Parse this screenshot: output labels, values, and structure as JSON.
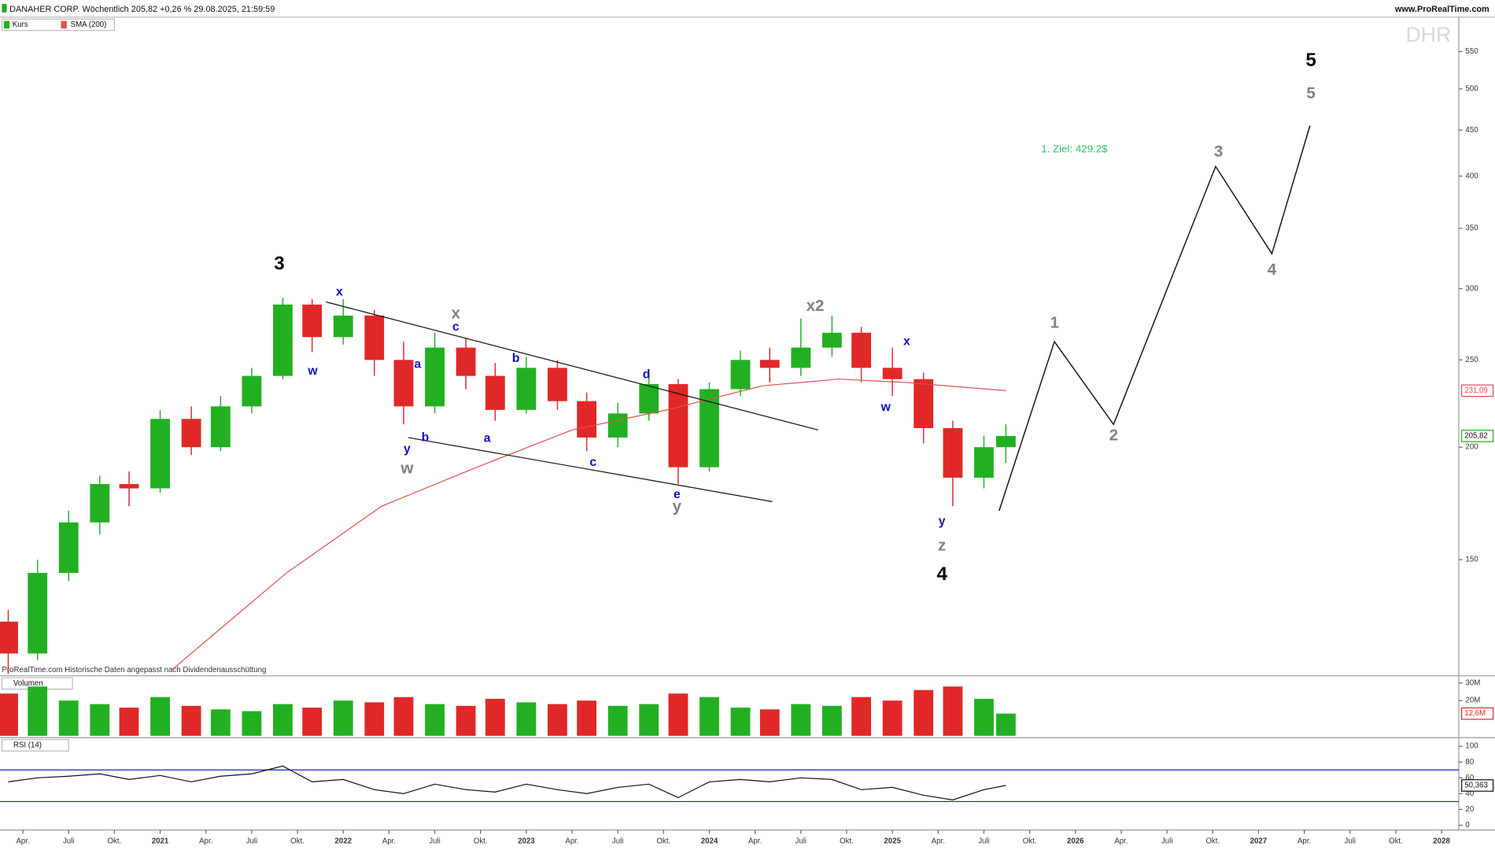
{
  "chart_data": {
    "type": "candlestick",
    "title": "DANAHER CORP. Wöchentlich 205,82 +0,26 % 29.08.2025, 21:59:59",
    "source": "www.ProRealTime.com",
    "ticker": "DHR",
    "note": "ProRealTime.com Historische Daten angepasst nach Dividendenausschüttung",
    "x": [
      2020.17,
      2020.33,
      2020.5,
      2020.67,
      2020.83,
      2021.0,
      2021.17,
      2021.33,
      2021.5,
      2021.67,
      2021.83,
      2022.0,
      2022.17,
      2022.33,
      2022.5,
      2022.67,
      2022.83,
      2023.0,
      2023.17,
      2023.33,
      2023.5,
      2023.67,
      2023.83,
      2024.0,
      2024.17,
      2024.33,
      2024.5,
      2024.67,
      2024.83,
      2025.0,
      2025.17,
      2025.33,
      2025.5,
      2025.62
    ],
    "xlim": [
      2020.125,
      2028.094
    ],
    "xticks": [
      {
        "value": 2020.25,
        "label": "Apr."
      },
      {
        "value": 2020.5,
        "label": "Juli"
      },
      {
        "value": 2020.75,
        "label": "Okt."
      },
      2021,
      {
        "value": 2021.25,
        "label": "Apr."
      },
      {
        "value": 2021.5,
        "label": "Juli"
      },
      {
        "value": 2021.75,
        "label": "Okt."
      },
      2022,
      {
        "value": 2022.25,
        "label": "Apr."
      },
      {
        "value": 2022.5,
        "label": "Juli"
      },
      {
        "value": 2022.75,
        "label": "Okt."
      },
      2023,
      {
        "value": 2023.25,
        "label": "Apr."
      },
      {
        "value": 2023.5,
        "label": "Juli"
      },
      {
        "value": 2023.75,
        "label": "Okt."
      },
      2024,
      {
        "value": 2024.25,
        "label": "Apr."
      },
      {
        "value": 2024.5,
        "label": "Juli"
      },
      {
        "value": 2024.75,
        "label": "Okt."
      },
      2025,
      {
        "value": 2025.25,
        "label": "Apr."
      },
      {
        "value": 2025.5,
        "label": "Juli"
      },
      {
        "value": 2025.75,
        "label": "Okt."
      },
      2026,
      {
        "value": 2026.25,
        "label": "Apr."
      },
      {
        "value": 2026.5,
        "label": "Juli"
      },
      {
        "value": 2026.75,
        "label": "Okt."
      },
      2027,
      {
        "value": 2027.25,
        "label": "Apr."
      },
      {
        "value": 2027.5,
        "label": "Juli"
      },
      {
        "value": 2027.75,
        "label": "Okt."
      },
      2028
    ],
    "price": {
      "name": "Kurs",
      "up_color": "#22b022",
      "down_color": "#e02828",
      "log": true,
      "open": [
        128,
        118,
        145,
        165,
        182,
        180,
        215,
        200,
        222,
        240,
        288,
        265,
        280,
        250,
        222,
        258,
        240,
        220,
        245,
        225,
        205,
        218,
        235,
        190,
        232,
        250,
        245,
        258,
        268,
        245,
        238,
        210,
        185,
        200
      ],
      "high": [
        132,
        150,
        170,
        186,
        188,
        220,
        222,
        228,
        245,
        293,
        292,
        292,
        284,
        262,
        268,
        264,
        248,
        252,
        250,
        230,
        224,
        242,
        238,
        236,
        256,
        258,
        278,
        280,
        272,
        258,
        242,
        214,
        206,
        212
      ],
      "low": [
        112,
        116,
        142,
        160,
        172,
        178,
        196,
        198,
        218,
        238,
        255,
        260,
        240,
        212,
        218,
        232,
        214,
        218,
        220,
        198,
        200,
        214,
        182,
        188,
        228,
        236,
        240,
        252,
        236,
        228,
        202,
        172,
        180,
        192
      ],
      "close": [
        118,
        145,
        165,
        182,
        180,
        215,
        200,
        222,
        240,
        288,
        265,
        280,
        250,
        222,
        258,
        240,
        220,
        245,
        225,
        205,
        218,
        235,
        190,
        232,
        250,
        245,
        258,
        268,
        245,
        238,
        210,
        185,
        200,
        205.82
      ],
      "ylim": [
        112,
        620
      ],
      "yticks": [
        150,
        200,
        250,
        300,
        350,
        400,
        450,
        500,
        550
      ],
      "last": {
        "value": 205.82,
        "label": "205,82"
      }
    },
    "sma": {
      "name": "SMA (200)",
      "color": "#e05050",
      "x": [
        2021.06,
        2021.69,
        2022.21,
        2022.73,
        2023.25,
        2023.77,
        2024.29,
        2024.71,
        2025.07,
        2025.62
      ],
      "values": [
        113,
        145,
        172,
        190,
        209,
        220,
        234,
        238,
        236,
        231.09
      ],
      "last": {
        "value": 231.09,
        "label": "231,09"
      }
    },
    "trendlines": [
      {
        "x": [
          2021.906,
          2024.594
        ],
        "values": [
          290,
          209
        ]
      },
      {
        "x": [
          2022.354,
          2024.344
        ],
        "values": [
          205,
          174
        ]
      }
    ],
    "projection": {
      "color": "#111111",
      "x": [
        2025.583,
        2025.885,
        2026.208,
        2026.766,
        2027.073,
        2027.281
      ],
      "values": [
        170,
        262,
        212,
        410,
        328,
        455
      ]
    },
    "target": {
      "text": "1. Ziel: 429.2$",
      "color": "#2ec060"
    },
    "annotations": [
      {
        "text": "3",
        "color": "#000000"
      },
      {
        "text": "x",
        "color": "#1010c0"
      },
      {
        "text": "w",
        "color": "#1010c0"
      },
      {
        "text": "x",
        "color": "#808080"
      },
      {
        "text": "c",
        "color": "#1010c0"
      },
      {
        "text": "a",
        "color": "#1010c0"
      },
      {
        "text": "b",
        "color": "#1010c0"
      },
      {
        "text": "y",
        "color": "#1010c0"
      },
      {
        "text": "b",
        "color": "#1010c0"
      },
      {
        "text": "w",
        "color": "#808080"
      },
      {
        "text": "a",
        "color": "#1010c0"
      },
      {
        "text": "c",
        "color": "#1010c0"
      },
      {
        "text": "d",
        "color": "#1010c0"
      },
      {
        "text": "e",
        "color": "#1010c0"
      },
      {
        "text": "y",
        "color": "#808080"
      },
      {
        "text": "x2",
        "color": "#808080"
      },
      {
        "text": "x",
        "color": "#1010c0"
      },
      {
        "text": "w",
        "color": "#1010c0"
      },
      {
        "text": "y",
        "color": "#1010c0"
      },
      {
        "text": "z",
        "color": "#808080"
      },
      {
        "text": "4",
        "color": "#000000"
      },
      {
        "text": "1",
        "color": "#808080"
      },
      {
        "text": "2",
        "color": "#808080"
      },
      {
        "text": "3",
        "color": "#808080"
      },
      {
        "text": "4",
        "color": "#808080"
      },
      {
        "text": "5",
        "color": "#000000"
      },
      {
        "text": "5",
        "color": "#808080"
      }
    ],
    "volume": {
      "name": "Volumen",
      "values": [
        24000000,
        28000000,
        20000000,
        18000000,
        16000000,
        22000000,
        17000000,
        15000000,
        14000000,
        18000000,
        16000000,
        20000000,
        19000000,
        22000000,
        18000000,
        17000000,
        21000000,
        19000000,
        18000000,
        20000000,
        17000000,
        18000000,
        24000000,
        22000000,
        16000000,
        15000000,
        18000000,
        17000000,
        22000000,
        20000000,
        26000000,
        28000000,
        21000000,
        12600000
      ],
      "ylim": [
        0,
        33000000
      ],
      "yticks": [
        {
          "value": 20000000,
          "label": "20M"
        },
        {
          "value": 30000000,
          "label": "30M"
        }
      ],
      "last": {
        "value": 12600000,
        "label": "12,6M"
      }
    },
    "rsi": {
      "name": "RSI (14)",
      "color": "#111111",
      "level_color": "#2020a0",
      "values": [
        55,
        60,
        62,
        65,
        58,
        63,
        55,
        62,
        65,
        75,
        55,
        58,
        45,
        40,
        52,
        45,
        42,
        52,
        45,
        40,
        48,
        52,
        35,
        55,
        58,
        55,
        60,
        58,
        45,
        48,
        38,
        32,
        45,
        50.363
      ],
      "ylim": [
        0,
        100
      ],
      "yticks": [
        0,
        20,
        40,
        60,
        80,
        100
      ],
      "levels": [
        70,
        30
      ],
      "last": {
        "value": 50.363,
        "label": "50,363"
      }
    }
  }
}
